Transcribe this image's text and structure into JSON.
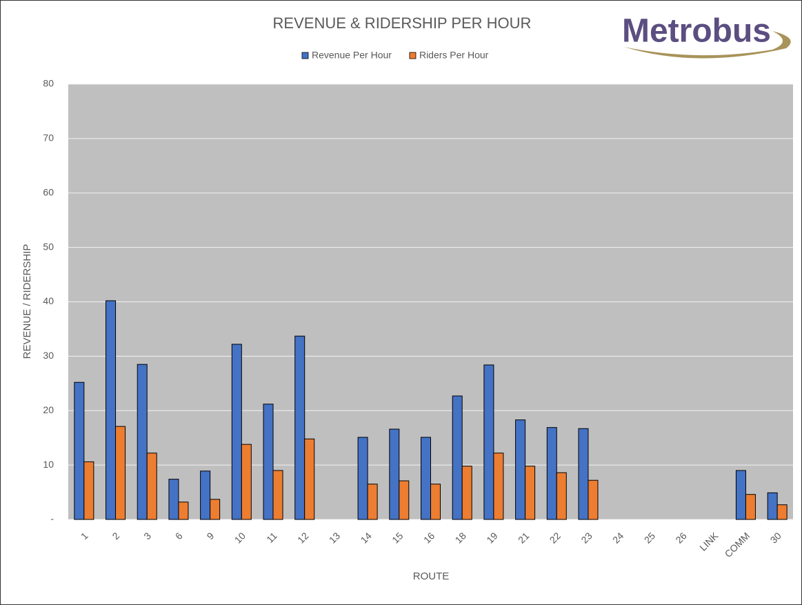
{
  "chart_data": {
    "type": "bar",
    "title": "REVENUE & RIDERSHIP PER HOUR",
    "x_label": "ROUTE",
    "y_label": "REVENUE / RIDERSHIP",
    "categories": [
      "1",
      "2",
      "3",
      "6",
      "9",
      "10",
      "11",
      "12",
      "13",
      "14",
      "15",
      "16",
      "18",
      "19",
      "21",
      "22",
      "23",
      "24",
      "25",
      "26",
      "LINK",
      "COMM",
      "30"
    ],
    "series": [
      {
        "name": "Revenue Per Hour",
        "color": "#4472c4",
        "values": [
          25.2,
          40.2,
          28.5,
          7.4,
          8.9,
          32.2,
          21.2,
          33.7,
          null,
          15.1,
          16.6,
          15.1,
          22.7,
          28.4,
          18.3,
          16.9,
          16.7,
          null,
          null,
          null,
          null,
          9.0,
          4.9
        ]
      },
      {
        "name": "Riders Per Hour",
        "color": "#ed7d31",
        "values": [
          10.6,
          17.1,
          12.2,
          3.2,
          3.7,
          13.8,
          9.0,
          14.8,
          null,
          6.5,
          7.1,
          6.5,
          9.8,
          12.2,
          9.8,
          8.6,
          7.2,
          null,
          null,
          null,
          null,
          4.6,
          2.7
        ]
      }
    ],
    "ylim": [
      0,
      80
    ],
    "yticks": [
      {
        "value": 0,
        "label": "-"
      },
      10,
      20,
      30,
      40,
      50,
      60,
      70,
      80
    ],
    "grid": true,
    "legend": "top"
  },
  "logo": "Metrobus"
}
